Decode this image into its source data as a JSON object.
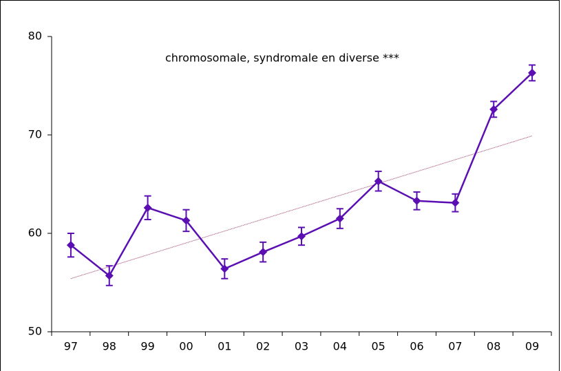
{
  "chart_data": {
    "type": "line",
    "annotation": "chromosomale, syndromale en diverse ***",
    "categories": [
      "97",
      "98",
      "99",
      "00",
      "01",
      "02",
      "03",
      "04",
      "05",
      "06",
      "07",
      "08",
      "09"
    ],
    "series": [
      {
        "color": "#5b0fb3",
        "values": [
          58.8,
          55.7,
          62.6,
          61.3,
          56.4,
          58.1,
          59.7,
          61.5,
          65.3,
          63.3,
          63.1,
          72.6,
          76.3
        ],
        "errors": [
          1.2,
          1.0,
          1.2,
          1.1,
          1.0,
          1.0,
          0.9,
          1.0,
          1.0,
          0.9,
          0.9,
          0.8,
          0.8
        ]
      }
    ],
    "trendline": {
      "color": "#993366",
      "start": 55.4,
      "end": 69.9
    },
    "ylim": [
      50,
      80
    ],
    "yticks": [
      50,
      60,
      70,
      80
    ]
  }
}
